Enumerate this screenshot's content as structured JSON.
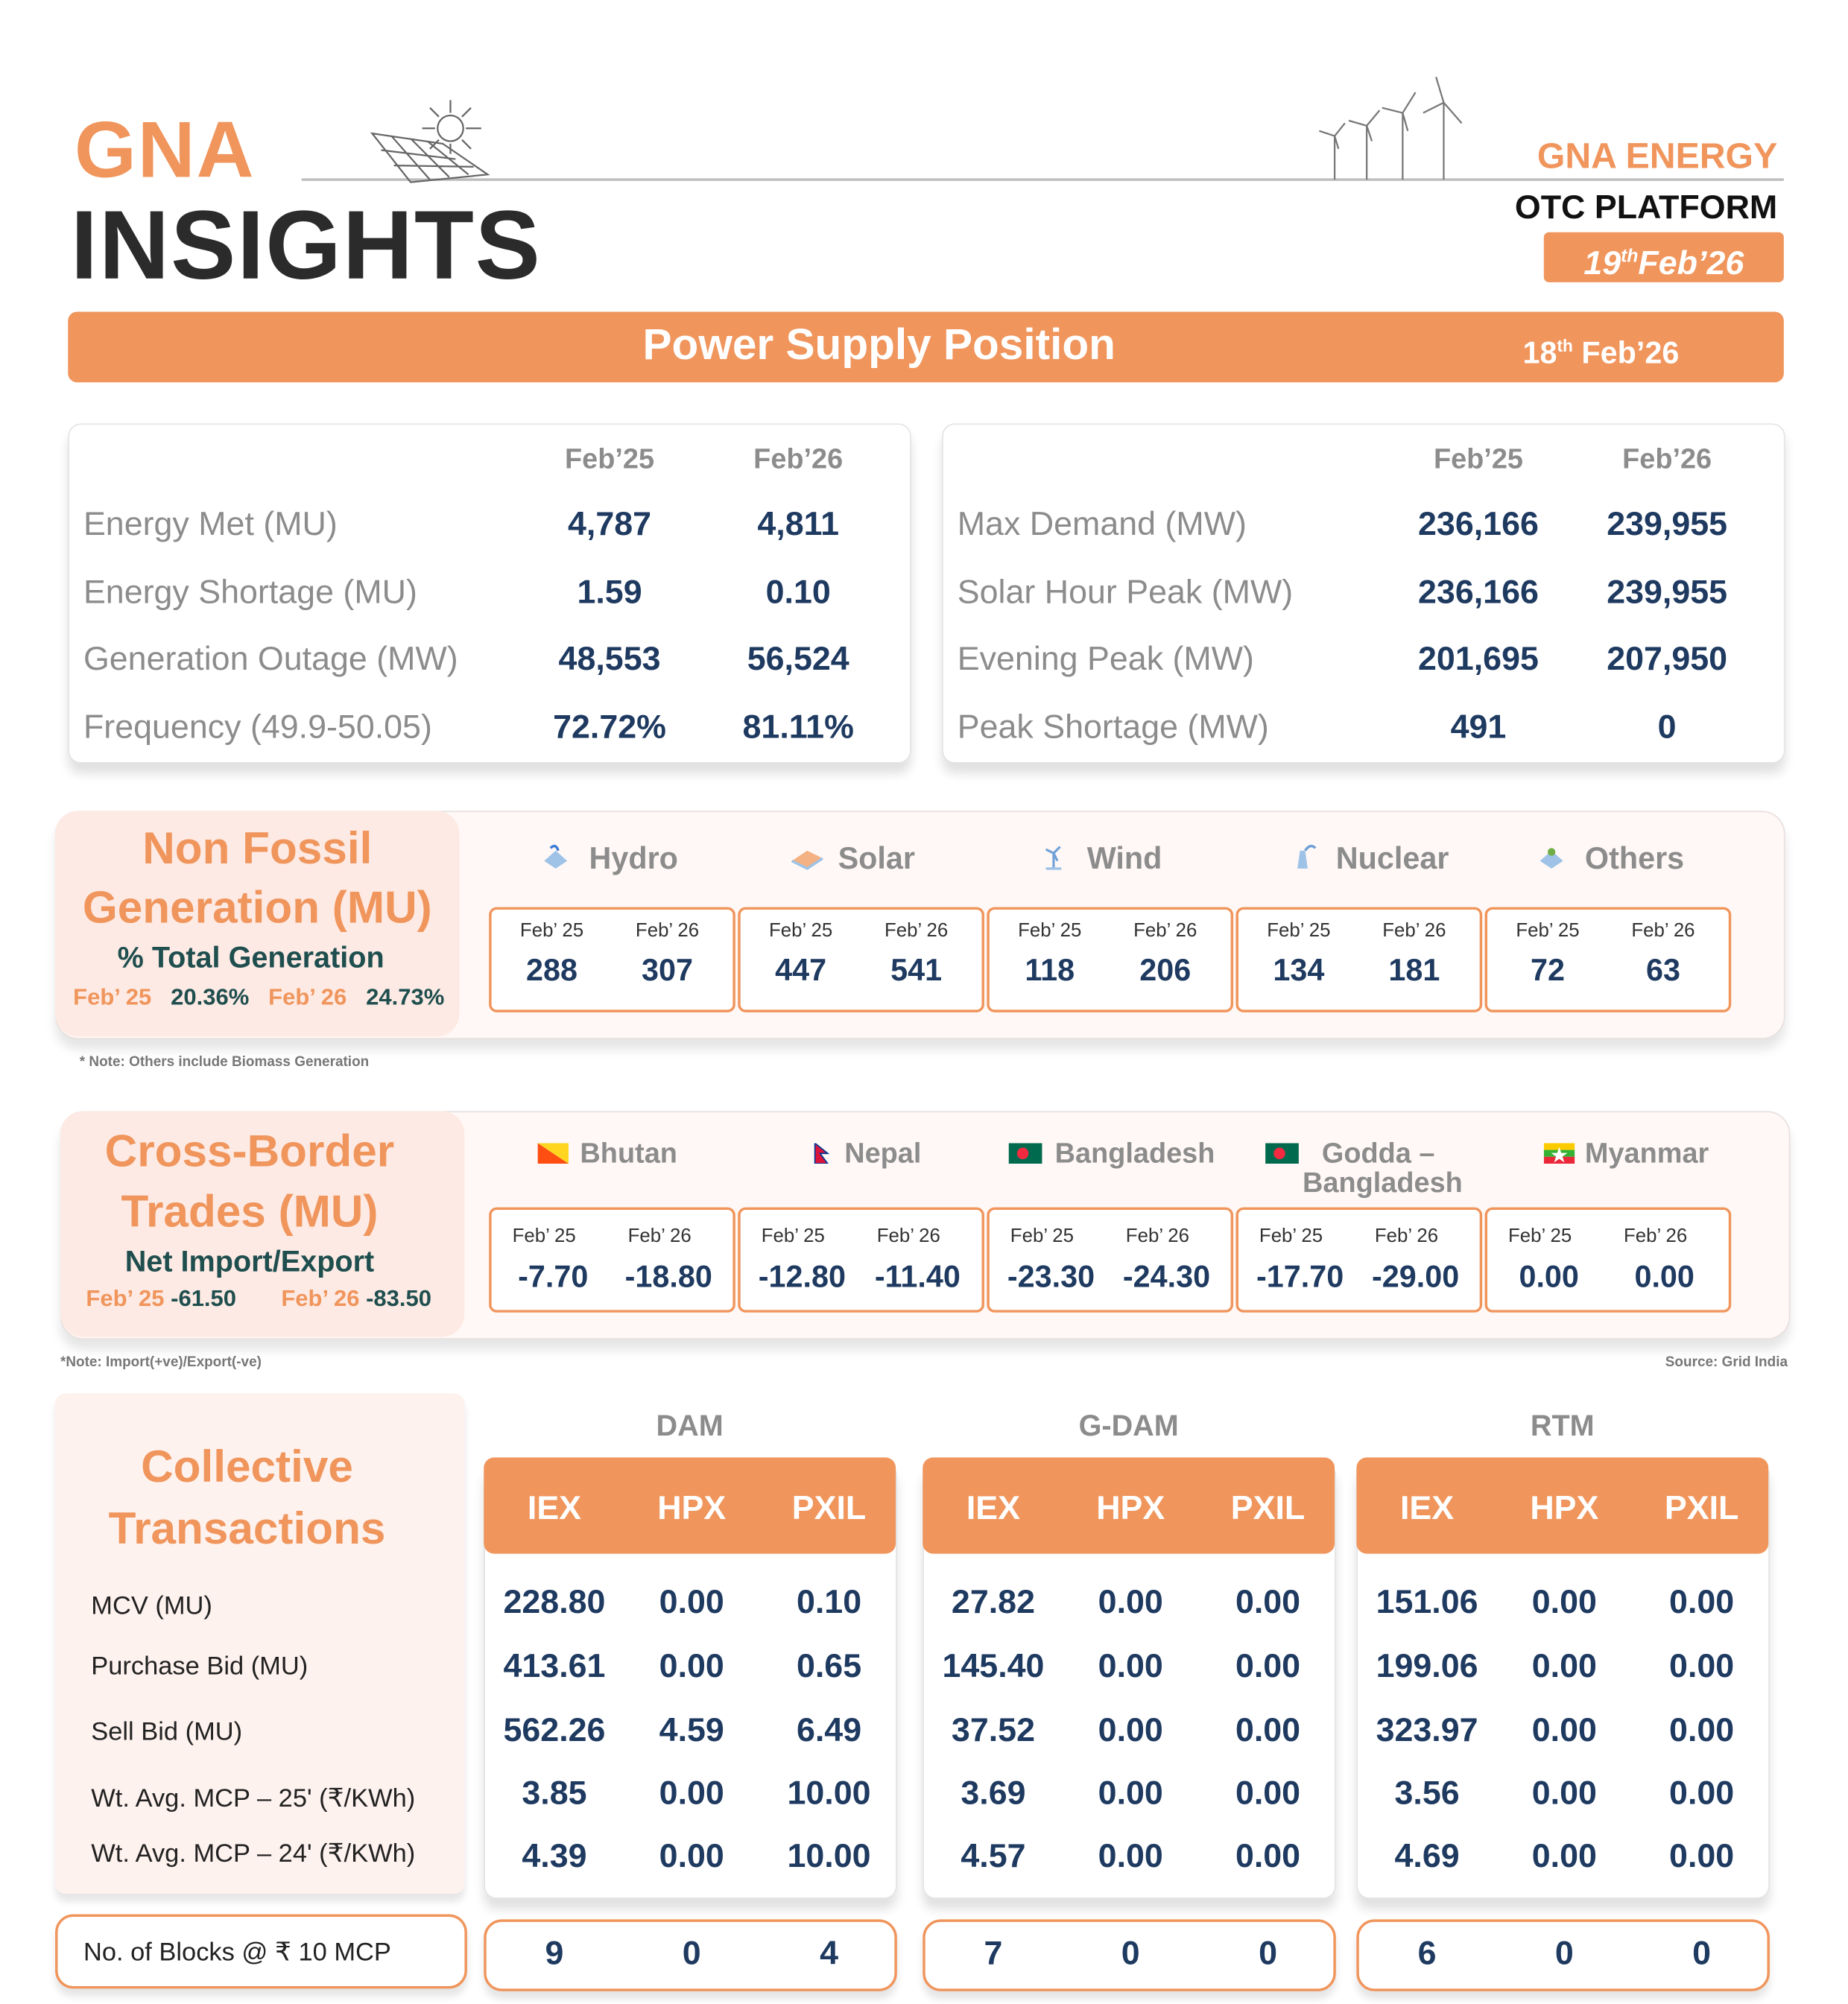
{
  "header": {
    "logo_top": "GNA",
    "logo_bottom": "INSIGHTS",
    "brand": "GNA ENERGY",
    "platform": "OTC PLATFORM",
    "date_day": "19",
    "date_sup": "th",
    "date_rest": "Feb’26"
  },
  "banner": {
    "title": "Power Supply Position",
    "date_day": "18",
    "date_sup": "th",
    "date_rest": " Feb’26"
  },
  "supply_left": {
    "columns": [
      "Feb’25",
      "Feb’26"
    ],
    "rows": [
      {
        "label": "Energy Met (MU)",
        "v1": "4,787",
        "v2": "4,811"
      },
      {
        "label": "Energy Shortage (MU)",
        "v1": "1.59",
        "v2": "0.10"
      },
      {
        "label": "Generation Outage (MW)",
        "v1": "48,553",
        "v2": "56,524"
      },
      {
        "label": "Frequency (49.9-50.05)",
        "v1": "72.72%",
        "v2": "81.11%"
      }
    ]
  },
  "supply_right": {
    "columns": [
      "Feb’25",
      "Feb’26"
    ],
    "rows": [
      {
        "label": "Max Demand (MW)",
        "v1": "236,166",
        "v2": "239,955"
      },
      {
        "label": "Solar Hour Peak (MW)",
        "v1": "236,166",
        "v2": "239,955"
      },
      {
        "label": "Evening Peak (MW)",
        "v1": "201,695",
        "v2": "207,950"
      },
      {
        "label": "Peak Shortage (MW)",
        "v1": "491",
        "v2": "0"
      }
    ]
  },
  "non_fossil": {
    "title1": "Non Fossil",
    "title2": "Generation (MU)",
    "subtitle": "% Total Generation",
    "p1_label": "Feb’ 25",
    "p1_value": "20.36%",
    "p2_label": "Feb’ 26",
    "p2_value": "24.73%",
    "col1": "Feb’ 25",
    "col2": "Feb’ 26",
    "items": [
      {
        "name": "Hydro",
        "icon": "hydro-icon",
        "v1": "288",
        "v2": "307"
      },
      {
        "name": "Solar",
        "icon": "solar-icon",
        "v1": "447",
        "v2": "541"
      },
      {
        "name": "Wind",
        "icon": "wind-icon",
        "v1": "118",
        "v2": "206"
      },
      {
        "name": "Nuclear",
        "icon": "nuclear-icon",
        "v1": "134",
        "v2": "181"
      },
      {
        "name": "Others",
        "icon": "others-icon",
        "v1": "72",
        "v2": "63"
      }
    ],
    "note": "* Note: Others include Biomass Generation"
  },
  "cross_border": {
    "title1": "Cross-Border",
    "title2": "Trades (MU)",
    "subtitle": "Net Import/Export",
    "p1_label": "Feb’ 25",
    "p1_value": "-61.50",
    "p2_label": "Feb’ 26",
    "p2_value": "-83.50",
    "col1": "Feb’ 25",
    "col2": "Feb’ 26",
    "items": [
      {
        "name": "Bhutan",
        "flag": "bhutan-flag-icon",
        "v1": "-7.70",
        "v2": "-18.80"
      },
      {
        "name": "Nepal",
        "flag": "nepal-flag-icon",
        "v1": "-12.80",
        "v2": "-11.40"
      },
      {
        "name": "Bangladesh",
        "flag": "bangladesh-flag-icon",
        "v1": "-23.30",
        "v2": "-24.30"
      },
      {
        "name": "Godda –",
        "name2": "Bangladesh",
        "flag": "bangladesh-flag-icon",
        "v1": "-17.70",
        "v2": "-29.00"
      },
      {
        "name": "Myanmar",
        "flag": "myanmar-flag-icon",
        "v1": "0.00",
        "v2": "0.00"
      }
    ],
    "note": "*Note: Import(+ve)/Export(-ve)",
    "source": "Source: Grid India"
  },
  "collective": {
    "title1": "Collective",
    "title2": "Transactions",
    "row_labels": [
      "MCV (MU)",
      "Purchase Bid (MU)",
      "Sell Bid (MU)",
      "Wt. Avg. MCP – 25' (₹/KWh)",
      "Wt. Avg. MCP – 24' (₹/KWh)"
    ],
    "blocks_label": "No. of Blocks @ ₹ 10 MCP",
    "markets": [
      {
        "name": "DAM",
        "exchanges": [
          "IEX",
          "HPX",
          "PXIL"
        ],
        "rows": [
          [
            "228.80",
            "0.00",
            "0.10"
          ],
          [
            "413.61",
            "0.00",
            "0.65"
          ],
          [
            "562.26",
            "4.59",
            "6.49"
          ],
          [
            "3.85",
            "0.00",
            "10.00"
          ],
          [
            "4.39",
            "0.00",
            "10.00"
          ]
        ],
        "blocks": [
          "9",
          "0",
          "4"
        ]
      },
      {
        "name": "G-DAM",
        "exchanges": [
          "IEX",
          "HPX",
          "PXIL"
        ],
        "rows": [
          [
            "27.82",
            "0.00",
            "0.00"
          ],
          [
            "145.40",
            "0.00",
            "0.00"
          ],
          [
            "37.52",
            "0.00",
            "0.00"
          ],
          [
            "3.69",
            "0.00",
            "0.00"
          ],
          [
            "4.57",
            "0.00",
            "0.00"
          ]
        ],
        "blocks": [
          "7",
          "0",
          "0"
        ]
      },
      {
        "name": "RTM",
        "exchanges": [
          "IEX",
          "HPX",
          "PXIL"
        ],
        "rows": [
          [
            "151.06",
            "0.00",
            "0.00"
          ],
          [
            "199.06",
            "0.00",
            "0.00"
          ],
          [
            "323.97",
            "0.00",
            "0.00"
          ],
          [
            "3.56",
            "0.00",
            "0.00"
          ],
          [
            "4.69",
            "0.00",
            "0.00"
          ]
        ],
        "blocks": [
          "6",
          "0",
          "0"
        ]
      }
    ]
  },
  "colors": {
    "accent": "#F0955C",
    "value": "#1F3A60",
    "label": "#8C8C8C",
    "panel": "#FFF8F6",
    "panel_left": "#FDEAE4"
  }
}
